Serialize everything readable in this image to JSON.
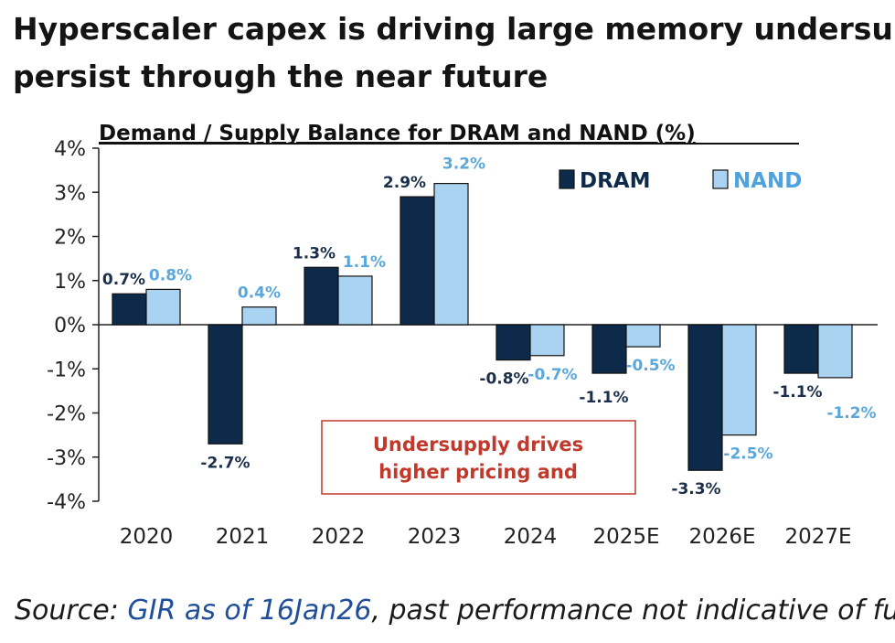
{
  "headline": {
    "line1": "Hyperscaler capex is driving large memory undersupply, which should",
    "line2": "persist through the near future"
  },
  "source": {
    "prefix": "Source: ",
    "link": "GIR as of 16Jan26",
    "suffix": ", past performance not indicative of future results"
  },
  "chart_data": {
    "type": "bar",
    "title": "Demand / Supply Balance for DRAM and NAND (%)",
    "xlabel": "",
    "ylabel": "",
    "categories": [
      "2020",
      "2021",
      "2022",
      "2023",
      "2024",
      "2025E",
      "2026E",
      "2027E"
    ],
    "series": [
      {
        "name": "DRAM",
        "color": "#0d2a4a",
        "label_color": "#1b2f4a",
        "values": [
          0.7,
          -2.7,
          1.3,
          2.9,
          -0.8,
          -1.1,
          -3.3,
          -1.1
        ],
        "labels": [
          "0.7%",
          "-2.7%",
          "1.3%",
          "2.9%",
          "-0.8%",
          "-1.1%",
          "-3.3%",
          "-1.1%"
        ]
      },
      {
        "name": "NAND",
        "color": "#a9d3f0",
        "label_color": "#5aa7dc",
        "values": [
          0.8,
          0.4,
          1.1,
          3.2,
          -0.7,
          -0.5,
          -2.5,
          -1.2
        ],
        "labels": [
          "0.8%",
          "0.4%",
          "1.1%",
          "3.2%",
          "-0.7%",
          "-0.5%",
          "-2.5%",
          "-1.2%"
        ]
      }
    ],
    "ylim": [
      -4,
      4
    ],
    "yticks": [
      "4%",
      "3%",
      "2%",
      "1%",
      "0%",
      "-1%",
      "-2%",
      "-3%",
      "-4%"
    ],
    "grid": false,
    "legend": "top-right",
    "annotation": {
      "line1": "Undersupply drives",
      "line2": "higher pricing and",
      "color": "#c0392b"
    }
  }
}
